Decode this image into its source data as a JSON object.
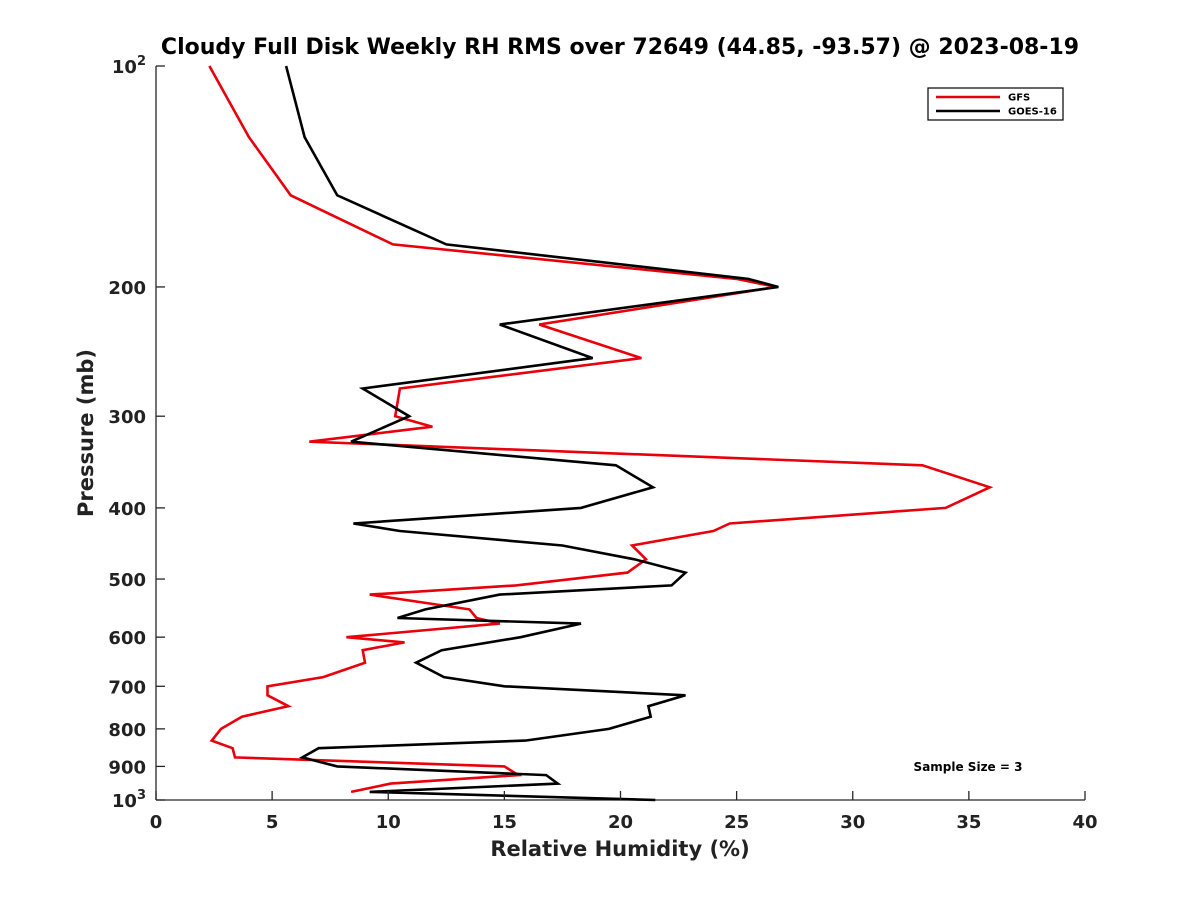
{
  "chart_data": {
    "type": "line",
    "title": "Cloudy Full Disk Weekly RH RMS over 72649 (44.85, -93.57) @ 2023-08-19",
    "xlabel": "Relative Humidity (%)",
    "ylabel": "Pressure (mb)",
    "xlim": [
      0,
      40
    ],
    "ylim": [
      100,
      1000
    ],
    "y_scale": "log",
    "y_reversed": true,
    "x_ticks": [
      "0",
      "5",
      "10",
      "15",
      "20",
      "25",
      "30",
      "35",
      "40"
    ],
    "y_ticks": [
      {
        "value": 100,
        "label": "10",
        "sup": "2"
      },
      {
        "value": 200,
        "label": "200"
      },
      {
        "value": 300,
        "label": "300"
      },
      {
        "value": 400,
        "label": "400"
      },
      {
        "value": 500,
        "label": "500"
      },
      {
        "value": 600,
        "label": "600"
      },
      {
        "value": 700,
        "label": "700"
      },
      {
        "value": 800,
        "label": "800"
      },
      {
        "value": 900,
        "label": "900"
      },
      {
        "value": 1000,
        "label": "10",
        "sup": "3"
      }
    ],
    "grid": false,
    "legend": "top-right",
    "annotation": "Sample Size = 3",
    "series": [
      {
        "name": "GFS",
        "color": "#e8000b",
        "points": [
          [
            2.3,
            100
          ],
          [
            4.0,
            125
          ],
          [
            5.8,
            150
          ],
          [
            10.2,
            175
          ],
          [
            25.0,
            195
          ],
          [
            26.7,
            200
          ],
          [
            16.5,
            225
          ],
          [
            20.9,
            250
          ],
          [
            10.5,
            275
          ],
          [
            10.3,
            300
          ],
          [
            11.9,
            310
          ],
          [
            6.6,
            325
          ],
          [
            33.0,
            350
          ],
          [
            35.9,
            375
          ],
          [
            34.0,
            400
          ],
          [
            24.7,
            420
          ],
          [
            24.0,
            430
          ],
          [
            20.5,
            450
          ],
          [
            21.1,
            470
          ],
          [
            20.3,
            490
          ],
          [
            15.5,
            510
          ],
          [
            9.2,
            525
          ],
          [
            13.5,
            550
          ],
          [
            13.8,
            565
          ],
          [
            14.8,
            575
          ],
          [
            8.2,
            600
          ],
          [
            10.7,
            610
          ],
          [
            8.9,
            625
          ],
          [
            9.0,
            650
          ],
          [
            7.2,
            680
          ],
          [
            4.8,
            700
          ],
          [
            4.8,
            720
          ],
          [
            5.7,
            745
          ],
          [
            3.7,
            770
          ],
          [
            2.8,
            800
          ],
          [
            2.4,
            830
          ],
          [
            3.3,
            850
          ],
          [
            3.4,
            875
          ],
          [
            15.0,
            900
          ],
          [
            15.6,
            925
          ],
          [
            10.1,
            950
          ],
          [
            8.4,
            975
          ]
        ]
      },
      {
        "name": "GOES-16",
        "color": "#000000",
        "points": [
          [
            5.6,
            100
          ],
          [
            6.4,
            125
          ],
          [
            7.8,
            150
          ],
          [
            12.5,
            175
          ],
          [
            25.5,
            195
          ],
          [
            26.8,
            200
          ],
          [
            14.8,
            225
          ],
          [
            18.8,
            250
          ],
          [
            8.9,
            275
          ],
          [
            10.9,
            300
          ],
          [
            8.4,
            325
          ],
          [
            19.8,
            350
          ],
          [
            21.4,
            375
          ],
          [
            18.3,
            400
          ],
          [
            8.5,
            420
          ],
          [
            10.5,
            430
          ],
          [
            17.5,
            450
          ],
          [
            20.6,
            470
          ],
          [
            22.8,
            490
          ],
          [
            22.2,
            510
          ],
          [
            14.8,
            525
          ],
          [
            11.6,
            550
          ],
          [
            10.4,
            565
          ],
          [
            18.3,
            575
          ],
          [
            15.7,
            600
          ],
          [
            12.3,
            625
          ],
          [
            11.2,
            650
          ],
          [
            12.4,
            680
          ],
          [
            15.0,
            700
          ],
          [
            22.8,
            720
          ],
          [
            21.2,
            745
          ],
          [
            21.3,
            770
          ],
          [
            19.5,
            800
          ],
          [
            15.9,
            830
          ],
          [
            7.0,
            850
          ],
          [
            6.3,
            875
          ],
          [
            7.8,
            900
          ],
          [
            16.8,
            925
          ],
          [
            17.3,
            950
          ],
          [
            9.2,
            975
          ],
          [
            21.5,
            1000
          ]
        ]
      }
    ]
  }
}
